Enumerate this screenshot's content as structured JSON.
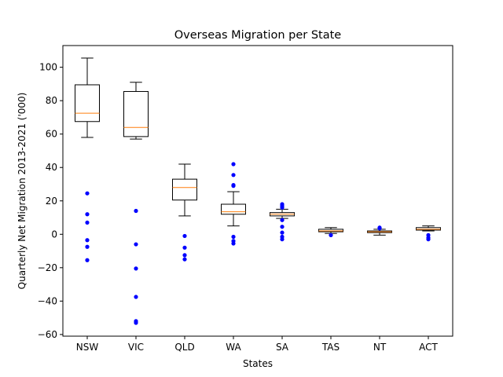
{
  "chart_data": {
    "type": "box",
    "title": "Overseas Migration per State",
    "xlabel": "States",
    "ylabel": "Quarterly Net Migration 2013-2021 ('000)",
    "ylim": [
      -61,
      113
    ],
    "yticks": [
      -60,
      -40,
      -20,
      0,
      20,
      40,
      60,
      80,
      100
    ],
    "categories": [
      "NSW",
      "VIC",
      "QLD",
      "WA",
      "SA",
      "TAS",
      "NT",
      "ACT"
    ],
    "boxes": [
      {
        "label": "NSW",
        "whisker_low": 58,
        "q1": 67.5,
        "median": 72.5,
        "q3": 89.5,
        "whisker_high": 105.5,
        "outliers": [
          24.5,
          12,
          7,
          -3.5,
          -7.5,
          -15.5
        ]
      },
      {
        "label": "VIC",
        "whisker_low": 57,
        "q1": 58.5,
        "median": 64,
        "q3": 85.5,
        "whisker_high": 91,
        "outliers": [
          14,
          -6,
          -20.5,
          -37.5,
          -52,
          -53
        ]
      },
      {
        "label": "QLD",
        "whisker_low": 11,
        "q1": 20.5,
        "median": 28,
        "q3": 33,
        "whisker_high": 42,
        "outliers": [
          -1,
          -8,
          -12.5,
          -15
        ]
      },
      {
        "label": "WA",
        "whisker_low": 5,
        "q1": 12,
        "median": 13.5,
        "q3": 18,
        "whisker_high": 25.5,
        "outliers": [
          42,
          35.5,
          29.5,
          29,
          -1.5,
          -4,
          -5.5
        ]
      },
      {
        "label": "SA",
        "whisker_low": 9.5,
        "q1": 11,
        "median": 12,
        "q3": 13,
        "whisker_high": 15,
        "outliers": [
          18,
          17,
          16,
          8.5,
          4.5,
          1,
          -1.5,
          -3
        ]
      },
      {
        "label": "TAS",
        "whisker_low": 0.5,
        "q1": 1.5,
        "median": 2,
        "q3": 3,
        "whisker_high": 4,
        "outliers": [
          -0.5
        ]
      },
      {
        "label": "NT",
        "whisker_low": -0.5,
        "q1": 1,
        "median": 1.5,
        "q3": 2,
        "whisker_high": 3,
        "outliers": [
          4,
          3.5
        ]
      },
      {
        "label": "ACT",
        "whisker_low": 2,
        "q1": 2.5,
        "median": 3,
        "q3": 4,
        "whisker_high": 5,
        "outliers": [
          -0.5,
          -2,
          -3
        ]
      }
    ],
    "colors": {
      "box": "#000000",
      "median": "#ff7f0e",
      "outlier": "#0000ff"
    },
    "grid": false,
    "legend": "none"
  }
}
